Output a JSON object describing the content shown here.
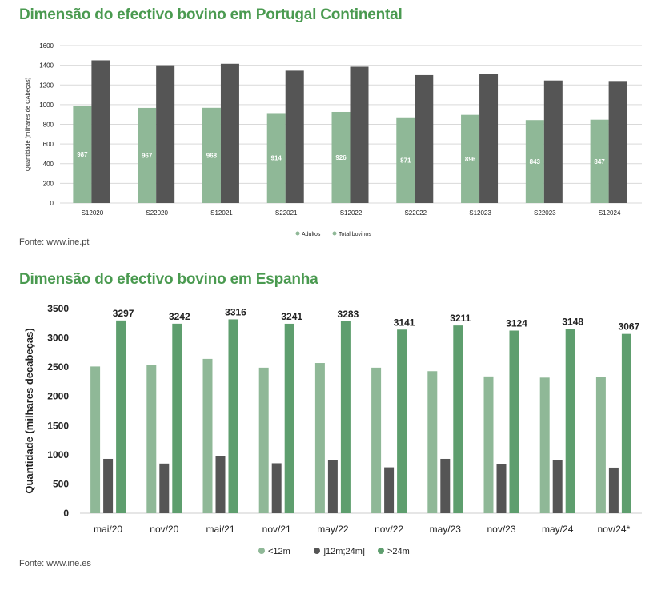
{
  "sections": [
    {
      "title": "Dimensão do efectivo bovino em Portugal Continental",
      "source": "Fonte: www.ine.pt"
    },
    {
      "title": "Dimensão do efectivo bovino em Espanha",
      "source": "Fonte: www.ine.es"
    }
  ],
  "chart_data": [
    {
      "type": "bar",
      "categories": [
        "S12020",
        "S22020",
        "S12021",
        "S22021",
        "S12022",
        "S22022",
        "S12023",
        "S22023",
        "S12024"
      ],
      "series": [
        {
          "name": "Adultos",
          "color": "#8fb897",
          "values": [
            987,
            967,
            968,
            914,
            926,
            871,
            896,
            843,
            847
          ],
          "labels_shown": true
        },
        {
          "name": "Total bovinos",
          "color": "#555555",
          "values": [
            1450,
            1400,
            1415,
            1345,
            1385,
            1300,
            1315,
            1245,
            1240
          ],
          "labels_shown": false
        }
      ],
      "ylabel": "Quantidade (milhares de CAbeças)",
      "ylim": [
        0,
        1600
      ],
      "yticks": [
        0,
        200,
        400,
        600,
        800,
        1000,
        1200,
        1400,
        1600
      ],
      "grid": true,
      "legend_position": "bottom-center"
    },
    {
      "type": "bar",
      "categories": [
        "mai/20",
        "nov/20",
        "mai/21",
        "nov/21",
        "may/22",
        "nov/22",
        "may/23",
        "nov/23",
        "may/24",
        "nov/24*"
      ],
      "series": [
        {
          "name": "<12m",
          "color": "#8fb897",
          "values": [
            2510,
            2540,
            2640,
            2490,
            2570,
            2490,
            2430,
            2340,
            2320,
            2330
          ],
          "labels_shown": false
        },
        {
          "name": "]12m;24m]",
          "color": "#555555",
          "values": [
            930,
            850,
            975,
            855,
            905,
            785,
            930,
            835,
            910,
            780
          ],
          "labels_shown": false
        },
        {
          "name": ">24m",
          "color": "#5e9e6e",
          "values": [
            3297,
            3242,
            3316,
            3241,
            3283,
            3141,
            3211,
            3124,
            3148,
            3067
          ],
          "labels_shown": true
        }
      ],
      "ylabel": "Quantidade (milhares decabeças)",
      "ylim": [
        0,
        3500
      ],
      "yticks": [
        0,
        500,
        1000,
        1500,
        2000,
        2500,
        3000,
        3500
      ],
      "grid": false,
      "legend_position": "bottom-center"
    }
  ]
}
